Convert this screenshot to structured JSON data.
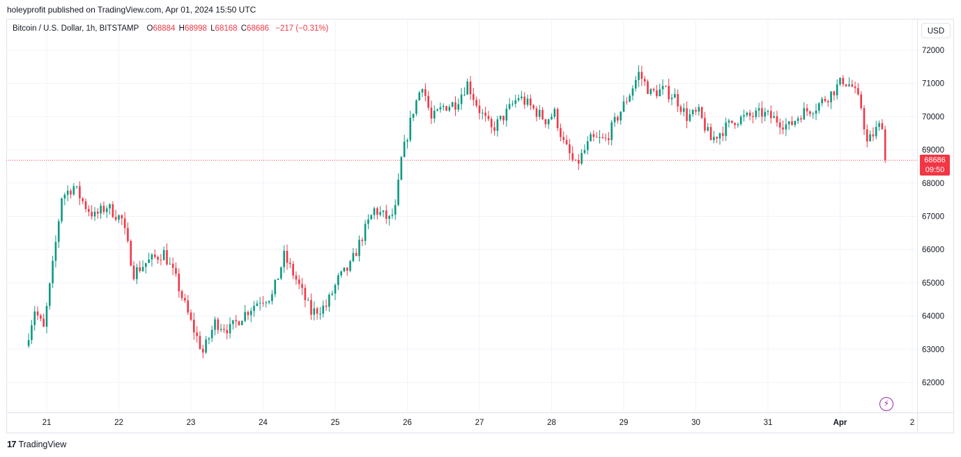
{
  "header": {
    "publisher_line": "holeyprofit published on TradingView.com, Apr 01, 2024 15:50 UTC"
  },
  "legend": {
    "symbol": "Bitcoin / U.S. Dollar, 1h, BITSTAMP",
    "o_label": "O",
    "o_value": "68884",
    "h_label": "H",
    "h_value": "68998",
    "l_label": "L",
    "l_value": "68168",
    "c_label": "C",
    "c_value": "68686",
    "change": "−217 (−0.31%)"
  },
  "price_scale": {
    "currency_button": "USD",
    "last_price": "68686",
    "countdown": "09:50"
  },
  "footer": {
    "brand": "TradingView"
  },
  "colors": {
    "up": "#089981",
    "down": "#f23645",
    "grid": "#f0f3fa",
    "text": "#131722"
  },
  "chart_data": {
    "type": "candlestick",
    "title": "Bitcoin / U.S. Dollar, 1h, BITSTAMP",
    "ylim": [
      61200,
      72500
    ],
    "y_ticks": [
      62000,
      63000,
      64000,
      65000,
      66000,
      67000,
      68000,
      69000,
      70000,
      71000,
      72000
    ],
    "x_ticks": [
      "21",
      "22",
      "23",
      "24",
      "25",
      "26",
      "27",
      "28",
      "29",
      "30",
      "31",
      "Apr",
      "2"
    ],
    "grid": true,
    "last_price": 68686,
    "price_path": [
      [
        "Mar 20 18:00",
        63100
      ],
      [
        "Mar 20 21:00",
        64200
      ],
      [
        "Mar 21 00:00",
        63600
      ],
      [
        "Mar 21 03:00",
        65500
      ],
      [
        "Mar 21 06:00",
        67600
      ],
      [
        "Mar 21 10:00",
        67900
      ],
      [
        "Mar 21 14:00",
        67300
      ],
      [
        "Mar 21 17:00",
        67000
      ],
      [
        "Mar 21 21:00",
        67300
      ],
      [
        "Mar 22 02:00",
        66900
      ],
      [
        "Mar 22 06:00",
        65300
      ],
      [
        "Mar 22 10:00",
        65600
      ],
      [
        "Mar 22 16:00",
        65900
      ],
      [
        "Mar 22 20:00",
        65100
      ],
      [
        "Mar 23 01:00",
        63800
      ],
      [
        "Mar 23 05:00",
        62900
      ],
      [
        "Mar 23 09:00",
        63800
      ],
      [
        "Mar 23 14:00",
        63600
      ],
      [
        "Mar 23 18:00",
        64000
      ],
      [
        "Mar 24 00:00",
        64500
      ],
      [
        "Mar 24 04:00",
        64600
      ],
      [
        "Mar 24 08:00",
        65800
      ],
      [
        "Mar 24 12:00",
        65100
      ],
      [
        "Mar 24 17:00",
        64100
      ],
      [
        "Mar 24 22:00",
        64300
      ],
      [
        "Mar 25 02:00",
        65100
      ],
      [
        "Mar 25 06:00",
        65500
      ],
      [
        "Mar 25 10:00",
        66400
      ],
      [
        "Mar 25 14:00",
        67200
      ],
      [
        "Mar 25 19:00",
        66900
      ],
      [
        "Mar 25 21:00",
        67200
      ],
      [
        "Mar 25 23:00",
        68700
      ],
      [
        "Mar 26 03:00",
        70200
      ],
      [
        "Mar 26 06:00",
        71000
      ],
      [
        "Mar 26 09:00",
        69900
      ],
      [
        "Mar 26 13:00",
        70300
      ],
      [
        "Mar 26 17:00",
        70400
      ],
      [
        "Mar 26 21:00",
        71000
      ],
      [
        "Mar 27 01:00",
        70200
      ],
      [
        "Mar 27 05:00",
        69600
      ],
      [
        "Mar 27 09:00",
        70000
      ],
      [
        "Mar 27 14:00",
        70600
      ],
      [
        "Mar 27 18:00",
        70300
      ],
      [
        "Mar 27 23:00",
        69900
      ],
      [
        "Mar 28 02:00",
        70100
      ],
      [
        "Mar 28 05:00",
        69200
      ],
      [
        "Mar 28 09:00",
        68500
      ],
      [
        "Mar 28 14:00",
        69300
      ],
      [
        "Mar 28 19:00",
        69300
      ],
      [
        "Mar 28 23:00",
        70000
      ],
      [
        "Mar 29 03:00",
        70700
      ],
      [
        "Mar 29 06:00",
        71300
      ],
      [
        "Mar 29 10:00",
        70700
      ],
      [
        "Mar 29 14:00",
        70800
      ],
      [
        "Mar 29 18:00",
        70600
      ],
      [
        "Mar 29 22:00",
        70000
      ],
      [
        "Mar 30 02:00",
        70100
      ],
      [
        "Mar 30 06:00",
        69300
      ],
      [
        "Mar 30 10:00",
        69600
      ],
      [
        "Mar 30 14:00",
        69900
      ],
      [
        "Mar 30 19:00",
        70000
      ],
      [
        "Mar 30 23:00",
        70100
      ],
      [
        "Mar 31 04:00",
        69900
      ],
      [
        "Mar 31 08:00",
        69700
      ],
      [
        "Mar 31 12:00",
        70100
      ],
      [
        "Mar 31 17:00",
        70300
      ],
      [
        "Mar 31 22:00",
        70700
      ],
      [
        "Apr 01 02:00",
        71100
      ],
      [
        "Apr 01 05:00",
        70900
      ],
      [
        "Apr 01 08:00",
        70300
      ],
      [
        "Apr 01 10:00",
        69200
      ],
      [
        "Apr 01 13:00",
        69600
      ],
      [
        "Apr 01 15:00",
        69800
      ],
      [
        "Apr 01 15:50",
        68686
      ]
    ]
  }
}
